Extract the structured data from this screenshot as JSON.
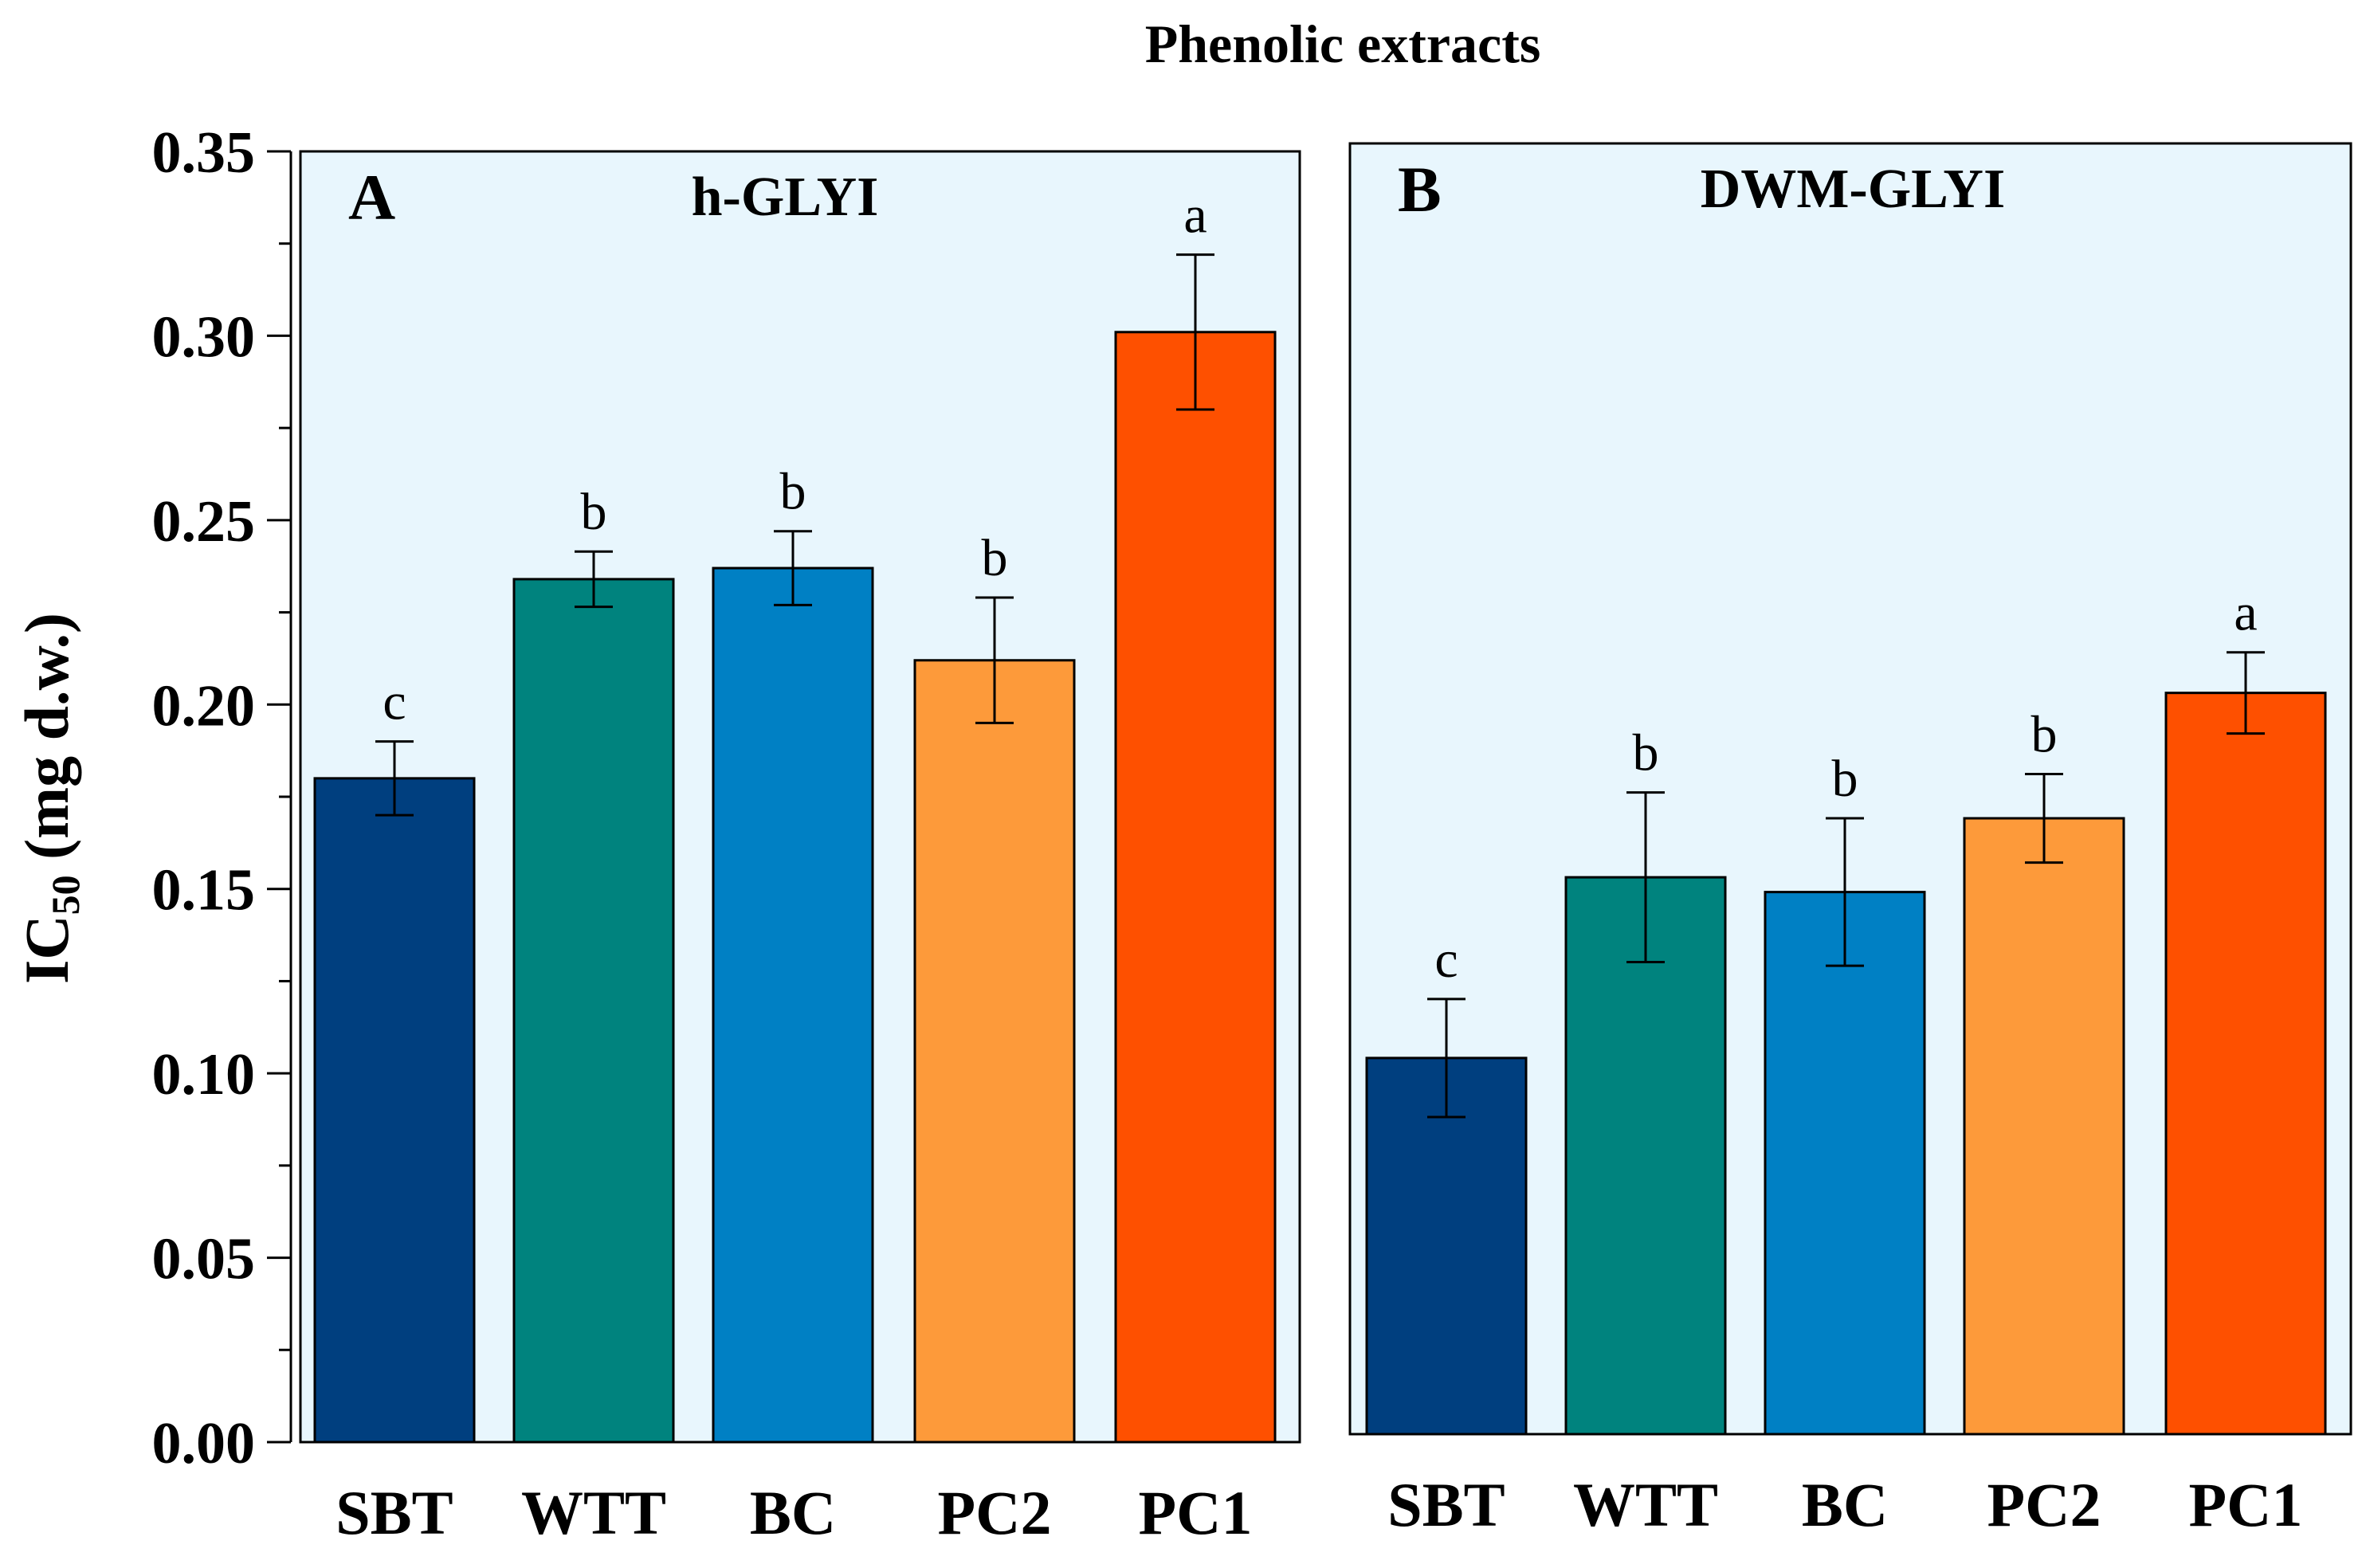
{
  "figure_title": "Phenolic extracts",
  "y_axis": {
    "label_main": "IC",
    "label_sub": "50",
    "label_rest": " (mg d.w.)",
    "ticks": [
      "0.00",
      "0.05",
      "0.10",
      "0.15",
      "0.20",
      "0.25",
      "0.30",
      "0.35"
    ]
  },
  "chart_data": [
    {
      "type": "bar",
      "panel_letter": "A",
      "title": "h-GLYI",
      "categories": [
        "SBT",
        "WTT",
        "BC",
        "PC2",
        "PC1"
      ],
      "values": [
        0.18,
        0.234,
        0.237,
        0.212,
        0.301
      ],
      "errors": [
        0.01,
        0.0075,
        0.01,
        0.017,
        0.021
      ],
      "significance_letters": [
        "c",
        "b",
        "b",
        "b",
        "a"
      ],
      "colors": [
        "#003f7f",
        "#00837e",
        "#0080c4",
        "#fd9a3a",
        "#fe5000"
      ],
      "ylabel": "IC50 (mg d.w.)",
      "ylim": [
        0,
        0.35
      ]
    },
    {
      "type": "bar",
      "panel_letter": "B",
      "title": "DWM-GLYI",
      "categories": [
        "SBT",
        "WTT",
        "BC",
        "PC2",
        "PC1"
      ],
      "values": [
        0.102,
        0.151,
        0.147,
        0.167,
        0.201
      ],
      "errors": [
        0.016,
        0.023,
        0.02,
        0.012,
        0.011
      ],
      "significance_letters": [
        "c",
        "b",
        "b",
        "b",
        "a"
      ],
      "colors": [
        "#003f7f",
        "#00837e",
        "#0080c4",
        "#fd9a3a",
        "#fe5000"
      ],
      "ylabel": "",
      "ylim": [
        0,
        0.35
      ]
    }
  ],
  "colors": {
    "panel_background": "#e8f6fd",
    "axis": "#000000"
  }
}
